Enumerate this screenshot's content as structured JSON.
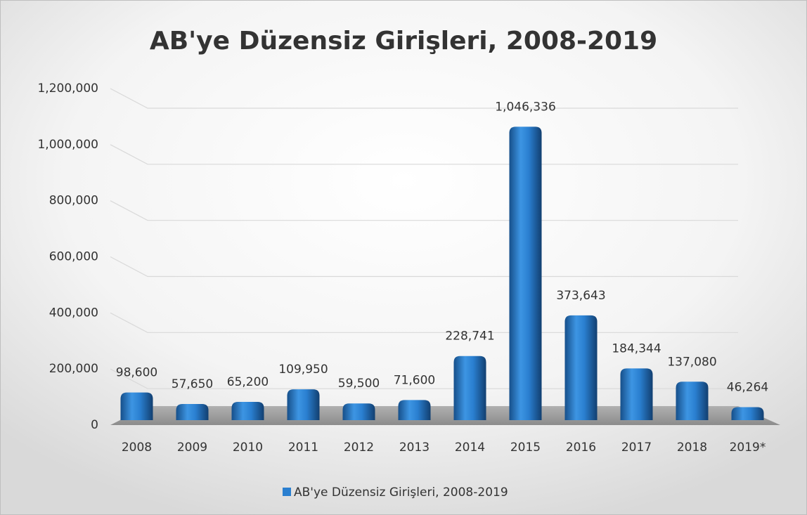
{
  "chart_data": {
    "type": "bar",
    "title": "AB'ye Düzensiz Girişleri, 2008-2019",
    "categories": [
      "2008",
      "2009",
      "2010",
      "2011",
      "2012",
      "2013",
      "2014",
      "2015",
      "2016",
      "2017",
      "2018",
      "2019*"
    ],
    "series": [
      {
        "name": "AB'ye Düzensiz Girişleri, 2008-2019",
        "color": "#2a7fd0",
        "values": [
          98600,
          57650,
          65200,
          109950,
          59500,
          71600,
          228741,
          1046336,
          373643,
          184344,
          137080,
          46264
        ],
        "value_labels": [
          "98,600",
          "57,650",
          "65,200",
          "109,950",
          "59,500",
          "71,600",
          "228,741",
          "1,046,336",
          "373,643",
          "184,344",
          "137,080",
          "46,264"
        ]
      }
    ],
    "ylim": [
      0,
      1200000
    ],
    "yticks": [
      0,
      {
        "value": 200000,
        "label": "200,000"
      },
      {
        "value": 400000,
        "label": "400,000"
      },
      {
        "value": 600000,
        "label": "600,000"
      },
      {
        "value": 800000,
        "label": "800,000"
      },
      {
        "value": 1000000,
        "label": "1,000,000"
      },
      {
        "value": 1200000,
        "label": "1,200,000"
      }
    ],
    "grid": true,
    "legend": "bottom"
  }
}
